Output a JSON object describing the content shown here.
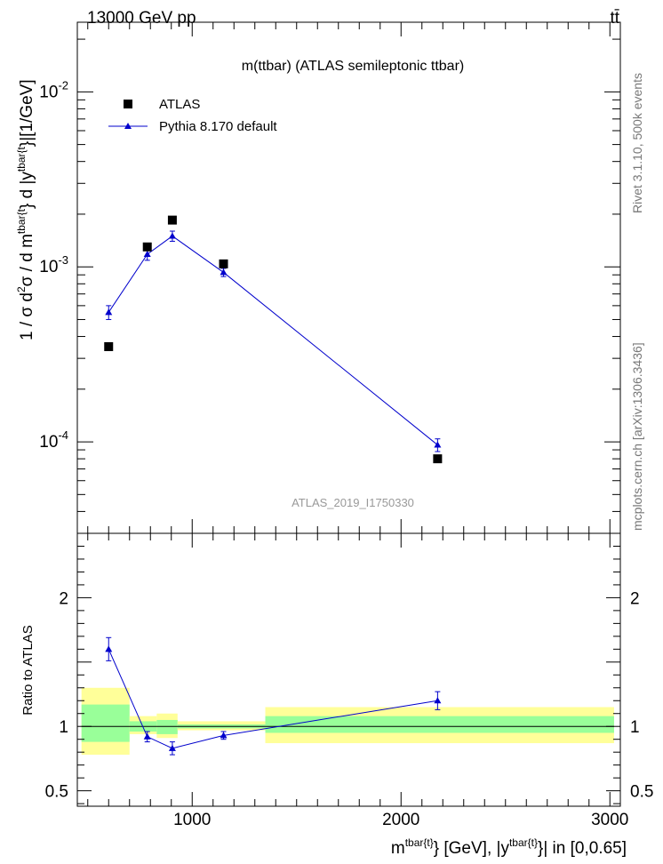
{
  "header": {
    "energy_label": "13000 GeV pp",
    "process_label": "tt̄"
  },
  "side_text": {
    "rivet": "Rivet 3.1.10,  500k events",
    "mcplots": "mcplots.cern.ch [arXiv:1306.3436]"
  },
  "colors": {
    "data": "#000000",
    "mc": "#0000cc",
    "band_inner": "#99ff99",
    "band_outer": "#ffff99",
    "watermark": "#999999",
    "side_text": "#777777"
  },
  "chart_data": [
    {
      "type": "scatter",
      "panel": "main",
      "title": "m(ttbar) (ATLAS semileptonic ttbar)",
      "watermark": "ATLAS_2019_I1750330",
      "ylabel": "1 / σ d²σ / d m^{tbar{t}} d |y^{tbar{t}}|[1/GeV]",
      "ylabel_parts": {
        "main": "1 / σ d",
        "sup1": "2",
        "mid1": "σ / d m",
        "sup2": "tbar{t",
        "mid2": "} d |y",
        "sup3": "tbar{t",
        "tail": "}|[1/GeV]"
      },
      "yscale": "log",
      "xlim": [
        450,
        3050
      ],
      "ylim": [
        3e-05,
        0.025
      ],
      "yticks": [
        {
          "value": 0.0001,
          "base": "10",
          "exp": "-4"
        },
        {
          "value": 0.001,
          "base": "10",
          "exp": "-3"
        },
        {
          "value": 0.01,
          "base": "10",
          "exp": "-2"
        }
      ],
      "legend": {
        "position": "top-left",
        "entries": [
          "ATLAS",
          "Pythia 8.170 default"
        ]
      },
      "series": [
        {
          "name": "ATLAS",
          "marker": "square",
          "x": [
            600,
            785,
            905,
            1150,
            2175
          ],
          "y": [
            0.00035,
            0.0013,
            0.00185,
            0.00104,
            8e-05
          ]
        },
        {
          "name": "Pythia 8.170 default",
          "marker": "triangle",
          "x": [
            600,
            785,
            905,
            1150,
            2175
          ],
          "y": [
            0.00055,
            0.00118,
            0.0015,
            0.00093,
            9.6e-05
          ],
          "yerr": [
            5e-05,
            9e-05,
            0.0001,
            5e-05,
            8e-06
          ]
        }
      ]
    },
    {
      "type": "line",
      "panel": "ratio",
      "ylabel": "Ratio to ATLAS",
      "xlabel": "m^{tbar{t}} [GeV], |y^{tbar{t}}| in [0,0.65]",
      "xlabel_parts": {
        "m": "m",
        "sup1": "tbar{t}",
        "mid": "} [GeV], |y",
        "sup2": "tbar{t}",
        "tail": "}| in [0,0.65]"
      },
      "xlim": [
        450,
        3050
      ],
      "ylim": [
        0.38,
        2.5
      ],
      "xticks": [
        {
          "value": 1000,
          "label": "1000"
        },
        {
          "value": 2000,
          "label": "2000"
        },
        {
          "value": 3000,
          "label": "3000"
        }
      ],
      "yticks": [
        {
          "value": 0.5,
          "label": "0.5"
        },
        {
          "value": 1,
          "label": "1"
        },
        {
          "value": 2,
          "label": "2"
        }
      ],
      "bands": [
        {
          "x0": 470,
          "x1": 700,
          "inner": [
            0.88,
            1.17
          ],
          "outer": [
            0.78,
            1.3
          ]
        },
        {
          "x0": 700,
          "x1": 830,
          "inner": [
            0.96,
            1.04
          ],
          "outer": [
            0.94,
            1.08
          ]
        },
        {
          "x0": 830,
          "x1": 930,
          "inner": [
            0.94,
            1.05
          ],
          "outer": [
            0.91,
            1.1
          ]
        },
        {
          "x0": 930,
          "x1": 1350,
          "inner": [
            0.985,
            1.015
          ],
          "outer": [
            0.97,
            1.04
          ]
        },
        {
          "x0": 1350,
          "x1": 3020,
          "inner": [
            0.95,
            1.08
          ],
          "outer": [
            0.87,
            1.15
          ]
        }
      ],
      "series": [
        {
          "name": "Pythia 8.170 default",
          "x": [
            600,
            785,
            905,
            1150,
            2175
          ],
          "y": [
            1.6,
            0.92,
            0.83,
            0.93,
            1.2
          ],
          "yerr": [
            0.09,
            0.04,
            0.05,
            0.03,
            0.07
          ]
        }
      ]
    }
  ]
}
